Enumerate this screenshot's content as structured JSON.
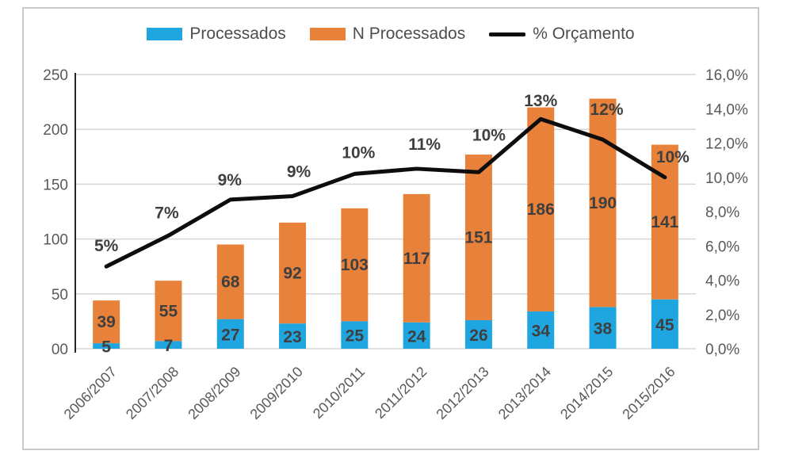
{
  "chart_data": {
    "type": "bar",
    "subtype": "stacked-column-with-line-overlay",
    "title": "",
    "categories": [
      "2006/2007",
      "2007/2008",
      "2008/2009",
      "2009/2010",
      "2010/2011",
      "2011/2012",
      "2012/2013",
      "2013/2014",
      "2014/2015",
      "2015/2016"
    ],
    "series": [
      {
        "name": "Processados",
        "kind": "bar",
        "axis": "left",
        "color": "#1fa6e0",
        "values": [
          5,
          7,
          27,
          23,
          25,
          24,
          26,
          34,
          38,
          45
        ]
      },
      {
        "name": "N Processados",
        "kind": "bar",
        "axis": "left",
        "color": "#e8813a",
        "values": [
          39,
          55,
          68,
          92,
          103,
          117,
          151,
          186,
          190,
          141
        ]
      },
      {
        "name": "% Orçamento",
        "kind": "line",
        "axis": "right",
        "color": "#0d0d0d",
        "point_labels": [
          "5%",
          "7%",
          "9%",
          "9%",
          "10%",
          "11%",
          "10%",
          "13%",
          "12%",
          "10%"
        ],
        "values": [
          4.8,
          6.6,
          8.7,
          8.9,
          10.2,
          10.5,
          10.3,
          13.4,
          12.2,
          10.0
        ]
      }
    ],
    "left_axis": {
      "min": 0,
      "max": 250,
      "step": 50,
      "ticks": [
        "250",
        "200",
        "150",
        "100",
        "50",
        "00"
      ]
    },
    "right_axis": {
      "min": 0,
      "max": 16,
      "step": 2,
      "ticks": [
        "16,0%",
        "14,0%",
        "12,0%",
        "10,0%",
        "8,0%",
        "6,0%",
        "4,0%",
        "2,0%",
        "0,0%"
      ]
    },
    "legend": {
      "position": "top",
      "items": [
        "Processados",
        "N Processados",
        "% Orçamento"
      ]
    },
    "grid": true,
    "gridline_color": "#d6d6d6",
    "axis_line_color": "#262626",
    "axis_text_color": "#595959",
    "bar_label_color": "#3f3f3f",
    "frame_border_color": "#c9c9c9",
    "bar_total_values": [
      44,
      62,
      95,
      115,
      128,
      141,
      177,
      220,
      228,
      186
    ]
  }
}
